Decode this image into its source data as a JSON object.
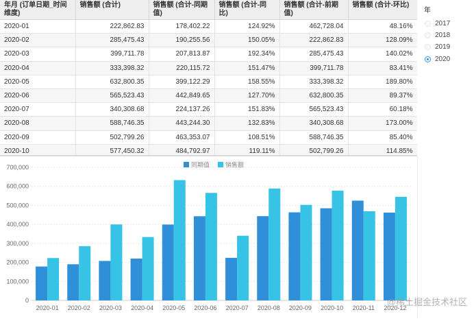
{
  "table": {
    "headers": [
      "年月 (订单日期_时间维度)",
      "销售额 (合计)",
      "销售额 (合计-同期值)",
      "销售额 (合计-同比)",
      "销售额 (合计-前期值)",
      "销售额 (合计-环比)"
    ],
    "rows": [
      [
        "2020-01",
        "222,862.83",
        "178,402.22",
        "124.92%",
        "462,728.04",
        "48.16%"
      ],
      [
        "2020-02",
        "285,475.43",
        "190,255.56",
        "150.05%",
        "222,862.83",
        "128.09%"
      ],
      [
        "2020-03",
        "399,711.78",
        "207,813.87",
        "192.34%",
        "285,475.43",
        "140.02%"
      ],
      [
        "2020-04",
        "333,398.32",
        "220,115.72",
        "151.47%",
        "399,711.78",
        "83.41%"
      ],
      [
        "2020-05",
        "632,800.35",
        "399,122.29",
        "158.55%",
        "333,398.32",
        "189.80%"
      ],
      [
        "2020-06",
        "565,523.43",
        "442,849.65",
        "127.70%",
        "632,800.35",
        "89.37%"
      ],
      [
        "2020-07",
        "340,308.68",
        "224,137.26",
        "151.83%",
        "565,523.43",
        "60.18%"
      ],
      [
        "2020-08",
        "588,746.35",
        "443,244.30",
        "132.83%",
        "340,308.68",
        "173.00%"
      ],
      [
        "2020-09",
        "502,799.26",
        "463,353.07",
        "108.51%",
        "588,746.35",
        "85.40%"
      ],
      [
        "2020-10",
        "577,450.32",
        "484,792.97",
        "119.11%",
        "502,799.26",
        "114.85%"
      ]
    ]
  },
  "filter": {
    "title": "年",
    "options": [
      "2017",
      "2018",
      "2019",
      "2020"
    ],
    "selected": "2020"
  },
  "watermark": "@稀土掘金技术社区",
  "colors": {
    "prior": "#2f8fd8",
    "sales": "#36c3e6",
    "grid": "#e6e6e6",
    "axis": "#666666"
  },
  "chart_data": {
    "type": "bar",
    "categories": [
      "2020-01",
      "2020-02",
      "2020-03",
      "2020-04",
      "2020-05",
      "2020-06",
      "2020-07",
      "2020-08",
      "2020-09",
      "2020-10",
      "2020-11",
      "2020-12"
    ],
    "series": [
      {
        "name": "同期值",
        "values": [
          178402.22,
          190255.56,
          207813.87,
          220115.72,
          399122.29,
          442849.65,
          224137.26,
          443244.3,
          463353.07,
          484792.97,
          525000,
          462000
        ]
      },
      {
        "name": "销售额",
        "values": [
          222862.83,
          285475.43,
          399711.78,
          333398.32,
          632800.35,
          565523.43,
          340308.68,
          588746.35,
          502799.26,
          577450.32,
          469000,
          545000
        ]
      }
    ],
    "yticks": [
      "0",
      "100,000",
      "200,000",
      "300,000",
      "400,000",
      "500,000",
      "600,000",
      "700,000"
    ],
    "ylim": [
      0,
      700000
    ],
    "legend_position": "top-center",
    "grid": true
  }
}
